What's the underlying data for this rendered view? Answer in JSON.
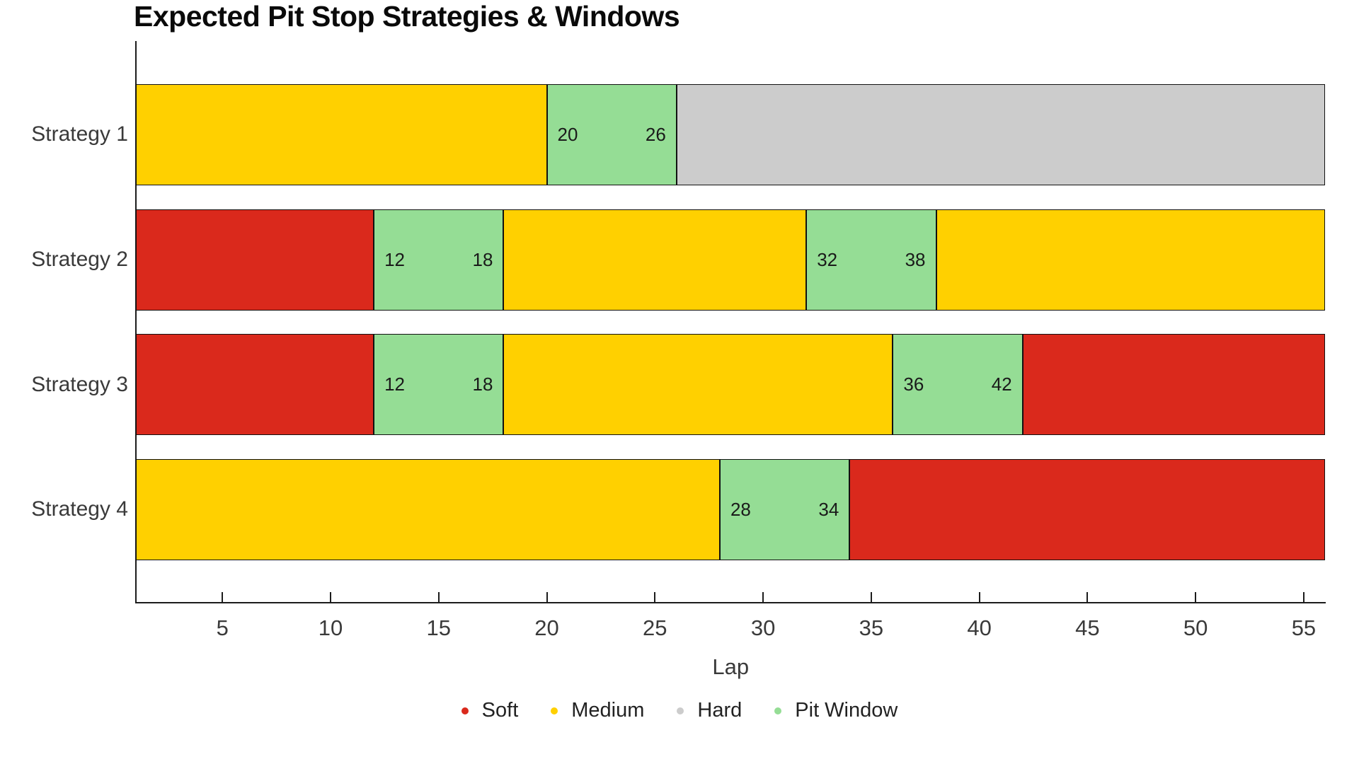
{
  "title": "Expected Pit Stop Strategies & Windows",
  "chart_data": {
    "type": "bar",
    "variant": "horizontal-stacked-gantt",
    "title": "Expected Pit Stop Strategies & Windows",
    "xlabel": "Lap",
    "ylabel": "",
    "xlim": [
      1,
      56
    ],
    "xticks": [
      5,
      10,
      15,
      20,
      25,
      30,
      35,
      40,
      45,
      50,
      55
    ],
    "grid": false,
    "legend_position": "bottom-center",
    "categories": [
      "Strategy 1",
      "Strategy 2",
      "Strategy 3",
      "Strategy 4"
    ],
    "colors": {
      "Soft": "#DA291C",
      "Medium": "#FFD000",
      "Hard": "#CCCCCC",
      "Pit Window": "#95DD95"
    },
    "legend": [
      {
        "label": "Soft",
        "color": "#DA291C"
      },
      {
        "label": "Medium",
        "color": "#FFD000"
      },
      {
        "label": "Hard",
        "color": "#CCCCCC"
      },
      {
        "label": "Pit Window",
        "color": "#95DD95"
      }
    ],
    "strategies": [
      {
        "name": "Strategy 1",
        "segments": [
          {
            "compound": "Medium",
            "start": 1,
            "end": 20
          },
          {
            "compound": "Pit Window",
            "start": 20,
            "end": 26,
            "labels": [
              "20",
              "26"
            ]
          },
          {
            "compound": "Hard",
            "start": 26,
            "end": 56
          }
        ]
      },
      {
        "name": "Strategy 2",
        "segments": [
          {
            "compound": "Soft",
            "start": 1,
            "end": 12
          },
          {
            "compound": "Pit Window",
            "start": 12,
            "end": 18,
            "labels": [
              "12",
              "18"
            ]
          },
          {
            "compound": "Medium",
            "start": 18,
            "end": 32
          },
          {
            "compound": "Pit Window",
            "start": 32,
            "end": 38,
            "labels": [
              "32",
              "38"
            ]
          },
          {
            "compound": "Medium",
            "start": 38,
            "end": 56
          }
        ]
      },
      {
        "name": "Strategy 3",
        "segments": [
          {
            "compound": "Soft",
            "start": 1,
            "end": 12
          },
          {
            "compound": "Pit Window",
            "start": 12,
            "end": 18,
            "labels": [
              "12",
              "18"
            ]
          },
          {
            "compound": "Medium",
            "start": 18,
            "end": 36
          },
          {
            "compound": "Pit Window",
            "start": 36,
            "end": 42,
            "labels": [
              "36",
              "42"
            ]
          },
          {
            "compound": "Soft",
            "start": 42,
            "end": 56
          }
        ]
      },
      {
        "name": "Strategy 4",
        "segments": [
          {
            "compound": "Medium",
            "start": 1,
            "end": 28
          },
          {
            "compound": "Pit Window",
            "start": 28,
            "end": 34,
            "labels": [
              "28",
              "34"
            ]
          },
          {
            "compound": "Soft",
            "start": 34,
            "end": 56
          }
        ]
      }
    ]
  }
}
